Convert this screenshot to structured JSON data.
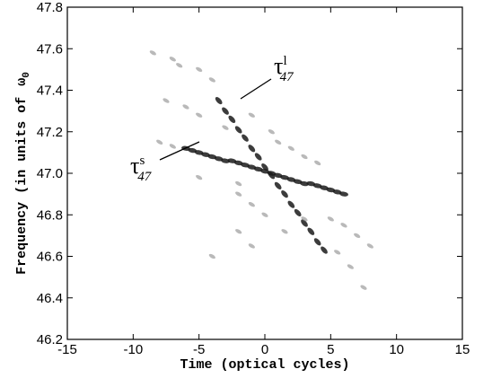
{
  "chart_data": {
    "type": "scatter",
    "xlabel": "Time (optical cycles)",
    "ylabel": {
      "text": "Frequency (in units of",
      "symbol": "ω",
      "sub": "0"
    },
    "xlim": [
      -15,
      15
    ],
    "xticks": [
      -15,
      -10,
      -5,
      0,
      5,
      10,
      15
    ],
    "ylim": [
      46.2,
      47.8
    ],
    "yticks": [
      46.2,
      46.4,
      46.6,
      46.8,
      {
        "value": 47,
        "label": "47.0"
      },
      47.2,
      47.4,
      47.6,
      47.8
    ],
    "series": [
      {
        "color": "#1a1a1a",
        "x": [
          -3.5,
          -3,
          -2.5,
          -2,
          -1.5,
          -1,
          -0.5,
          0,
          0.5,
          1,
          1.5,
          2,
          2.5,
          3,
          3.5,
          4,
          4.5
        ],
        "y": [
          47.35,
          47.3,
          47.26,
          47.21,
          47.17,
          47.12,
          47.08,
          47.03,
          46.99,
          46.94,
          46.9,
          46.85,
          46.81,
          46.76,
          46.72,
          46.67,
          46.63
        ]
      },
      {
        "color": "#1a1a1a",
        "x": [
          -6,
          -5.5,
          -5,
          -4.5,
          -4,
          -3.5,
          -3,
          -2.5,
          -2,
          -1.5,
          -1,
          -0.5,
          0,
          0.5,
          1,
          1.5,
          2,
          2.5,
          3,
          3.5,
          4,
          4.5,
          5,
          5.5,
          6
        ],
        "y": [
          47.12,
          47.11,
          47.1,
          47.09,
          47.08,
          47.07,
          47.06,
          47.06,
          47.05,
          47.04,
          47.03,
          47.02,
          47.01,
          47,
          46.99,
          46.98,
          46.97,
          46.96,
          46.95,
          46.95,
          46.94,
          46.93,
          46.92,
          46.91,
          46.9
        ]
      },
      {
        "color": "#8a8a8a",
        "x": [
          -8.5,
          -7,
          -6.5,
          -5,
          -4,
          -7.5,
          -6,
          -5,
          -3,
          -1,
          0.5,
          1,
          2,
          3,
          4,
          -8,
          -7,
          -2,
          -1,
          0,
          -2,
          1.5,
          3,
          5,
          6,
          7,
          8,
          5.5,
          6.5,
          7.5,
          -4,
          -1,
          -2,
          -5
        ],
        "y": [
          47.58,
          47.55,
          47.52,
          47.5,
          47.45,
          47.35,
          47.32,
          47.28,
          47.22,
          47.28,
          47.2,
          47.15,
          47.12,
          47.08,
          47.05,
          47.15,
          47.13,
          46.9,
          46.85,
          46.8,
          46.72,
          46.72,
          46.78,
          46.78,
          46.75,
          46.7,
          46.65,
          46.62,
          46.55,
          46.45,
          46.6,
          46.65,
          46.95,
          46.98
        ]
      }
    ],
    "annotations": [
      {
        "symbol": "τ",
        "sup": "l",
        "sub": "47"
      },
      {
        "symbol": "τ",
        "sup": "s",
        "sub": "47"
      }
    ]
  }
}
